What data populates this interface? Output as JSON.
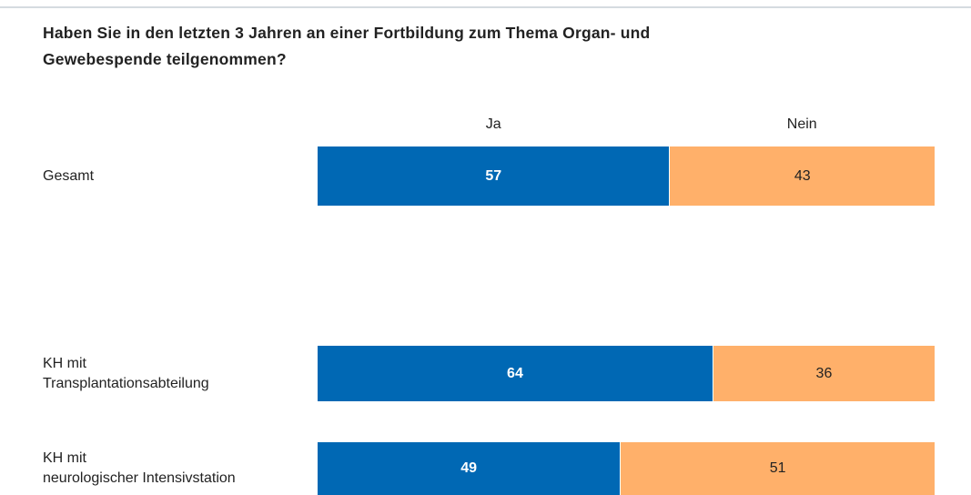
{
  "chart_data": {
    "type": "stacked_bar_horizontal",
    "title": "Haben Sie in den letzten 3 Jahren an einer Fortbildung zum Thema Organ- und\nGewebespende teilgenommen?",
    "categories": [
      "Gesamt",
      "KH mit\nTransplantationsabteilung",
      "KH mit\nneurologischer Intensivstation"
    ],
    "series": [
      {
        "name": "Ja",
        "color": "#0068b4",
        "values": [
          57,
          64,
          49
        ]
      },
      {
        "name": "Nein",
        "color": "#ffb06a",
        "values": [
          43,
          36,
          51
        ]
      }
    ],
    "xlim": [
      0,
      100
    ]
  }
}
